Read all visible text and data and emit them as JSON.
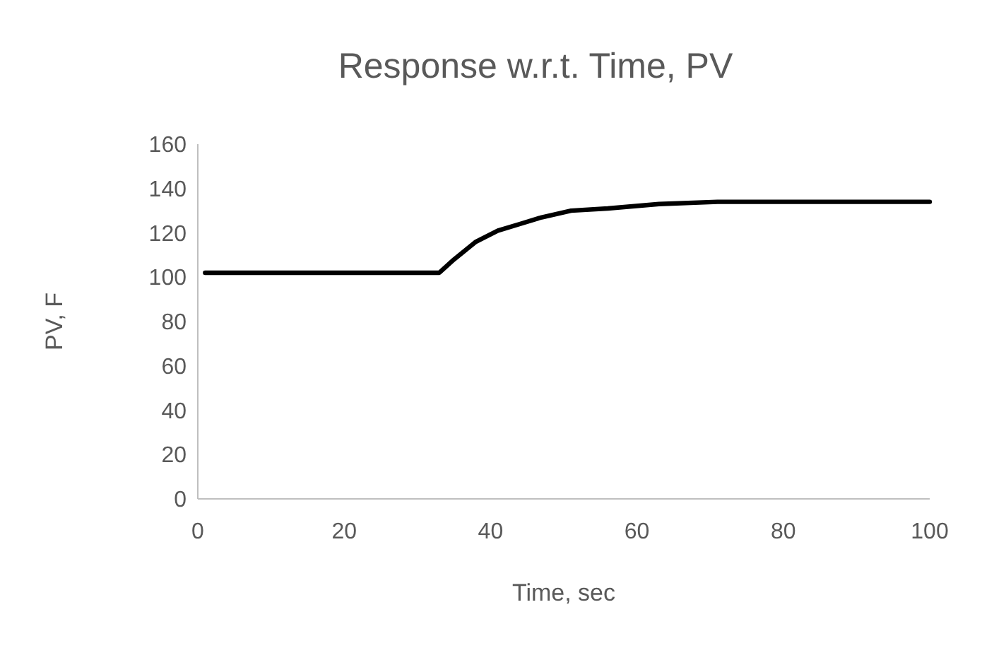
{
  "chart_data": {
    "type": "line",
    "title": "Response w.r.t. Time, PV",
    "xlabel": "Time, sec",
    "ylabel": "PV, F",
    "x": [
      1,
      33,
      35,
      38,
      41,
      44,
      47,
      51,
      56,
      63,
      71,
      100
    ],
    "series": [
      {
        "color": "#000000",
        "values": [
          102,
          102,
          108,
          116,
          121,
          124,
          127,
          130,
          131,
          133,
          134,
          134
        ]
      }
    ],
    "xlim": [
      0,
      100
    ],
    "xticks": [
      0,
      20,
      40,
      60,
      80,
      100
    ],
    "ylim": [
      0,
      160
    ],
    "yticks": [
      0,
      20,
      40,
      60,
      80,
      100,
      120,
      140,
      160
    ],
    "grid": false,
    "marker": "none",
    "line_style": "solid"
  }
}
